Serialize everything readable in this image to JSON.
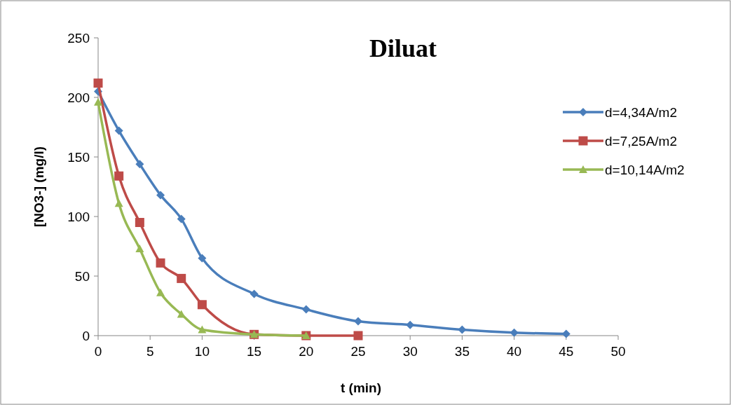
{
  "chart_data": {
    "type": "line",
    "title": "Diluat",
    "xlabel": "t (min)",
    "ylabel": "[NO3-] (mg/l)",
    "x": [
      0,
      2,
      4,
      6,
      8,
      10,
      15,
      20,
      25,
      30,
      35,
      40,
      45
    ],
    "series": [
      {
        "name": "d=4,34A/m2",
        "color": "#4a7ebb",
        "marker": "diamond",
        "values": [
          205,
          172,
          144,
          118,
          98,
          65,
          35,
          22,
          12,
          9,
          5,
          2.5,
          1.5
        ]
      },
      {
        "name": "d=7,25A/m2",
        "color": "#be4b48",
        "marker": "square",
        "x": [
          0,
          2,
          4,
          6,
          8,
          10,
          15,
          20,
          25
        ],
        "values": [
          212,
          134,
          95,
          61,
          48,
          26,
          1,
          0,
          0
        ]
      },
      {
        "name": "d=10,14A/m2",
        "color": "#98b954",
        "marker": "triangle",
        "x": [
          0,
          2,
          4,
          6,
          8,
          10,
          15,
          20
        ],
        "values": [
          196,
          111,
          73,
          36,
          18,
          5,
          1,
          0
        ]
      }
    ],
    "xlim": [
      0,
      50
    ],
    "xticks": [
      0,
      5,
      10,
      15,
      20,
      25,
      30,
      35,
      40,
      45,
      50
    ],
    "ylim": [
      0,
      250
    ],
    "yticks": [
      0,
      50,
      100,
      150,
      200,
      250
    ],
    "grid": false,
    "legend": "right",
    "line_style": "solid"
  }
}
